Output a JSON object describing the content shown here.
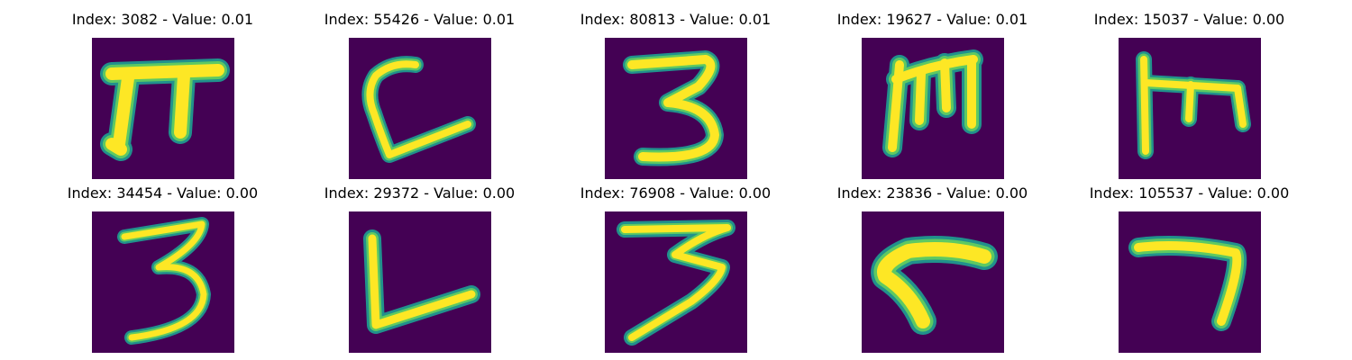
{
  "figure": {
    "panels": [
      {
        "title": "Index: 3082 - Value: 0.01",
        "glyph": "pi-like-icon"
      },
      {
        "title": "Index: 55426 - Value: 0.01",
        "glyph": "l-stroke-icon"
      },
      {
        "title": "Index: 80813 - Value: 0.01",
        "glyph": "three-icon"
      },
      {
        "title": "Index: 19627 - Value: 0.01",
        "glyph": "m-like-icon"
      },
      {
        "title": "Index: 15037 - Value: 0.00",
        "glyph": "m-like-icon"
      },
      {
        "title": "Index: 34454 - Value: 0.00",
        "glyph": "three-icon"
      },
      {
        "title": "Index: 29372 - Value: 0.00",
        "glyph": "l-stroke-icon"
      },
      {
        "title": "Index: 76908 - Value: 0.00",
        "glyph": "three-icon"
      },
      {
        "title": "Index: 23836 - Value: 0.00",
        "glyph": "angle-icon"
      },
      {
        "title": "Index: 105537 - Value: 0.00",
        "glyph": "seven-like-icon"
      }
    ]
  },
  "colors": {
    "background": "#440154",
    "stroke_core": "#fde725",
    "stroke_mid": "#5ec962",
    "stroke_edge": "#21918c"
  }
}
